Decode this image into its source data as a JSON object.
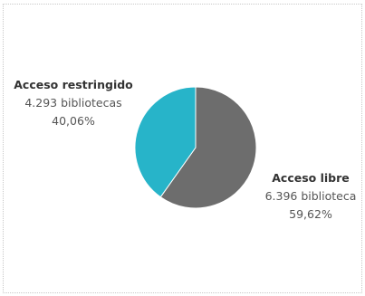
{
  "chart_data": {
    "type": "pie",
    "title": "",
    "slices": [
      {
        "label": "Acceso libre",
        "count_text": "6.396 biblioteca",
        "percent_text": "59,62%",
        "value": 59.62,
        "color": "#6d6d6d"
      },
      {
        "label": "Acceso restringido",
        "count_text": "4.293 bibliotecas",
        "percent_text": "40,06%",
        "value": 40.06,
        "color": "#27b4c9"
      }
    ],
    "legend": "none",
    "start_angle_deg": 0,
    "direction": "clockwise"
  }
}
